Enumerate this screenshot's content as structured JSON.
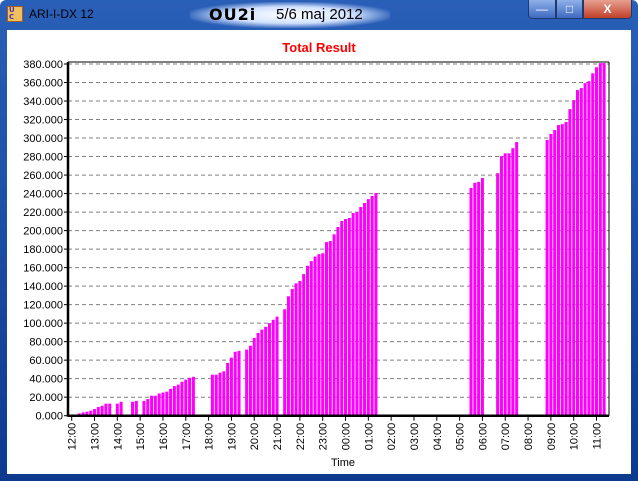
{
  "window": {
    "app_title": "ARI-I-DX 12",
    "icon_letters": "UCX",
    "logo_text": "OU2i",
    "date": "5/6 maj 2012",
    "buttons": {
      "minimize": "—",
      "maximize": "□",
      "close": "X"
    }
  },
  "chart_data": {
    "type": "bar",
    "title": "Total Result",
    "xlabel": "Time",
    "ylabel": "",
    "ylim": [
      0,
      380000
    ],
    "grid": true,
    "colors": {
      "bar": "#ff00ff",
      "title": "#ff0000",
      "grid": "#808080"
    },
    "y_ticks": [
      "0.000",
      "20.000",
      "40.000",
      "60.000",
      "80.000",
      "100.000",
      "120.000",
      "140.000",
      "160.000",
      "180.000",
      "200.000",
      "220.000",
      "240.000",
      "260.000",
      "280.000",
      "300.000",
      "320.000",
      "340.000",
      "360.000",
      "380.000"
    ],
    "x_ticks": [
      "12:00",
      "13:00",
      "14:00",
      "15:00",
      "16:00",
      "17:00",
      "18:00",
      "19:00",
      "20:00",
      "21:00",
      "22:00",
      "23:00",
      "00:00",
      "01:00",
      "02:00",
      "03:00",
      "04:00",
      "05:00",
      "06:00",
      "07:00",
      "08:00",
      "09:00",
      "10:00",
      "11:00"
    ],
    "bars": [
      [
        "12:10",
        1000
      ],
      [
        "12:20",
        2500
      ],
      [
        "12:30",
        3600
      ],
      [
        "12:40",
        4300
      ],
      [
        "12:50",
        5400
      ],
      [
        "13:00",
        7200
      ],
      [
        "13:10",
        9400
      ],
      [
        "13:20",
        10800
      ],
      [
        "13:30",
        13000
      ],
      [
        "13:40",
        13000
      ],
      [
        "14:00",
        13000
      ],
      [
        "14:10",
        15000
      ],
      [
        "14:40",
        15000
      ],
      [
        "14:50",
        16000
      ],
      [
        "15:10",
        16000
      ],
      [
        "15:20",
        18000
      ],
      [
        "15:30",
        21600
      ],
      [
        "15:40",
        21600
      ],
      [
        "15:50",
        24000
      ],
      [
        "16:00",
        25000
      ],
      [
        "16:10",
        26000
      ],
      [
        "16:20",
        29000
      ],
      [
        "16:30",
        32000
      ],
      [
        "16:40",
        33500
      ],
      [
        "16:50",
        36700
      ],
      [
        "17:00",
        39000
      ],
      [
        "17:10",
        41000
      ],
      [
        "17:20",
        42000
      ],
      [
        "18:10",
        44300
      ],
      [
        "18:20",
        44300
      ],
      [
        "18:30",
        46500
      ],
      [
        "18:40",
        48000
      ],
      [
        "18:50",
        57000
      ],
      [
        "19:00",
        62700
      ],
      [
        "19:10",
        69000
      ],
      [
        "19:20",
        70000
      ],
      [
        "19:40",
        71400
      ],
      [
        "19:50",
        75600
      ],
      [
        "20:00",
        84000
      ],
      [
        "20:10",
        89400
      ],
      [
        "20:20",
        93000
      ],
      [
        "20:30",
        96000
      ],
      [
        "20:40",
        100000
      ],
      [
        "20:50",
        103600
      ],
      [
        "21:00",
        107000
      ],
      [
        "21:20",
        115000
      ],
      [
        "21:30",
        129000
      ],
      [
        "21:40",
        137000
      ],
      [
        "21:50",
        143000
      ],
      [
        "22:00",
        145600
      ],
      [
        "22:10",
        153000
      ],
      [
        "22:20",
        162000
      ],
      [
        "22:30",
        167000
      ],
      [
        "22:40",
        172000
      ],
      [
        "22:50",
        174500
      ],
      [
        "23:00",
        175500
      ],
      [
        "23:10",
        187600
      ],
      [
        "23:20",
        188700
      ],
      [
        "23:30",
        196000
      ],
      [
        "23:40",
        203900
      ],
      [
        "23:50",
        210400
      ],
      [
        "00:00",
        212500
      ],
      [
        "00:10",
        213600
      ],
      [
        "00:20",
        219000
      ],
      [
        "00:30",
        220000
      ],
      [
        "00:40",
        225500
      ],
      [
        "00:50",
        229800
      ],
      [
        "01:00",
        234000
      ],
      [
        "01:10",
        237400
      ],
      [
        "01:20",
        240600
      ],
      [
        "05:30",
        246000
      ],
      [
        "05:40",
        251600
      ],
      [
        "05:50",
        252600
      ],
      [
        "06:00",
        256800
      ],
      [
        "06:40",
        262000
      ],
      [
        "06:50",
        280500
      ],
      [
        "07:00",
        283500
      ],
      [
        "07:10",
        283500
      ],
      [
        "07:20",
        289000
      ],
      [
        "07:30",
        295700
      ],
      [
        "08:50",
        297900
      ],
      [
        "09:00",
        304400
      ],
      [
        "09:10",
        308700
      ],
      [
        "09:20",
        314000
      ],
      [
        "09:30",
        315000
      ],
      [
        "09:40",
        317300
      ],
      [
        "09:50",
        331300
      ],
      [
        "10:00",
        341000
      ],
      [
        "10:10",
        351800
      ],
      [
        "10:20",
        354000
      ],
      [
        "10:30",
        359300
      ],
      [
        "10:40",
        361500
      ],
      [
        "10:50",
        370000
      ],
      [
        "11:00",
        376500
      ],
      [
        "11:10",
        380900
      ],
      [
        "11:20",
        381000
      ]
    ]
  }
}
